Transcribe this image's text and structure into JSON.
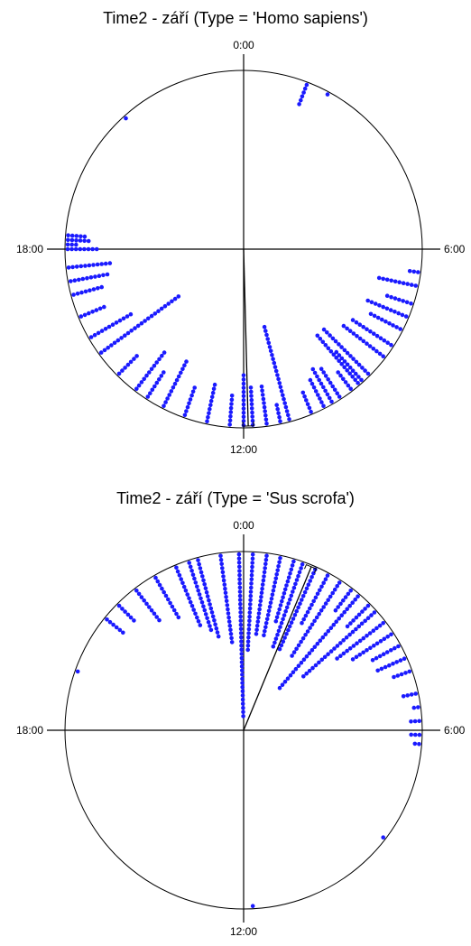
{
  "chart_data": [
    {
      "type": "scatter",
      "title": "Time2 - září (Type = 'Homo sapiens')",
      "axis": {
        "type": "circular",
        "labels": [
          "0:00",
          "6:00",
          "12:00",
          "18:00"
        ]
      },
      "point_color": "#1a1aff",
      "mean_direction_hours": 11.9,
      "series": [
        {
          "times": [
            18.0,
            18.0,
            18.0,
            18.0,
            18.0,
            18.0,
            18.0,
            18.0,
            18.1,
            18.1,
            18.1,
            18.2,
            18.2,
            18.2,
            18.2,
            18.2,
            18.2,
            18.3,
            18.3,
            18.3,
            18.3,
            18.3,
            17.6,
            17.6,
            17.6,
            17.6,
            17.6,
            17.6,
            17.6,
            17.6,
            17.6,
            17.6,
            17.6,
            17.3,
            17.3,
            17.3,
            17.3,
            17.3,
            17.3,
            17.3,
            17.3,
            17.3,
            17.3,
            17.0,
            17.0,
            17.0,
            17.0,
            17.0,
            17.0,
            17.0,
            17.0,
            16.5,
            16.5,
            16.5,
            16.5,
            16.5,
            16.5,
            16.5,
            16.0,
            16.0,
            16.0,
            16.0,
            16.0,
            16.0,
            16.0,
            16.0,
            16.0,
            16.0,
            16.0,
            16.0,
            15.6,
            15.6,
            15.6,
            15.6,
            15.6,
            15.6,
            15.6,
            15.6,
            15.6,
            15.6,
            15.6,
            15.6,
            15.6,
            15.6,
            15.6,
            15.6,
            15.6,
            15.6,
            15.6,
            15.6,
            15.6,
            15.6,
            15.6,
            15.6,
            15.0,
            15.0,
            15.0,
            15.0,
            15.0,
            15.0,
            15.0,
            14.5,
            14.5,
            14.5,
            14.5,
            14.5,
            14.5,
            14.5,
            14.5,
            14.5,
            14.5,
            14.5,
            14.5,
            14.2,
            14.2,
            14.2,
            14.2,
            14.2,
            14.2,
            14.2,
            14.2,
            13.8,
            13.8,
            13.8,
            13.8,
            13.8,
            13.8,
            13.8,
            13.8,
            13.8,
            13.8,
            13.8,
            13.8,
            13.8,
            13.3,
            13.3,
            13.3,
            13.3,
            13.3,
            13.3,
            13.3,
            13.3,
            12.8,
            12.8,
            12.8,
            12.8,
            12.8,
            12.8,
            12.8,
            12.8,
            12.8,
            12.8,
            12.3,
            12.3,
            12.3,
            12.3,
            12.3,
            12.3,
            12.3,
            12.3,
            12.0,
            12.0,
            12.0,
            12.0,
            12.0,
            12.0,
            12.0,
            12.0,
            12.0,
            12.0,
            12.0,
            12.0,
            12.0,
            11.8,
            11.8,
            11.8,
            11.8,
            11.8,
            11.8,
            11.8,
            11.8,
            11.8,
            11.8,
            11.5,
            11.5,
            11.5,
            11.5,
            11.5,
            11.5,
            11.5,
            11.5,
            11.5,
            11.5,
            11.2,
            11.2,
            11.2,
            11.2,
            11.2,
            11.0,
            11.0,
            11.0,
            11.0,
            11.0,
            11.0,
            11.0,
            11.0,
            11.0,
            11.0,
            11.0,
            11.0,
            11.0,
            11.0,
            11.0,
            11.0,
            11.0,
            11.0,
            11.0,
            11.0,
            11.0,
            11.0,
            11.0,
            11.0,
            10.5,
            10.5,
            10.5,
            10.5,
            10.5,
            10.5,
            10.2,
            10.2,
            10.2,
            10.2,
            10.2,
            10.2,
            10.2,
            10.2,
            10.0,
            10.0,
            10.0,
            10.0,
            10.0,
            10.0,
            10.0,
            10.0,
            10.0,
            10.0,
            9.8,
            9.8,
            9.8,
            9.8,
            9.8,
            9.8,
            9.8,
            9.8,
            9.8,
            9.5,
            9.5,
            9.5,
            9.5,
            9.5,
            9.5,
            9.3,
            9.3,
            9.3,
            9.3,
            9.3,
            9.3,
            9.3,
            9.3,
            9.3,
            9.3,
            9.3,
            9.3,
            9.3,
            9.3,
            9.3,
            9.3,
            9.2,
            9.2,
            9.2,
            9.2,
            9.2,
            9.2,
            9.2,
            9.2,
            9.2,
            9.2,
            9.0,
            9.0,
            9.0,
            9.0,
            9.0,
            9.0,
            9.0,
            9.0,
            9.0,
            9.0,
            9.0,
            9.0,
            9.0,
            9.0,
            9.0,
            9.0,
            8.5,
            8.5,
            8.5,
            8.5,
            8.5,
            8.5,
            8.5,
            8.5,
            8.5,
            8.5,
            8.5,
            8.5,
            8.5,
            8.2,
            8.2,
            8.2,
            8.2,
            8.2,
            8.2,
            8.2,
            8.2,
            8.2,
            8.2,
            8.2,
            8.2,
            7.8,
            7.8,
            7.8,
            7.8,
            7.8,
            7.8,
            7.8,
            7.8,
            7.8,
            7.5,
            7.5,
            7.5,
            7.5,
            7.5,
            7.5,
            7.5,
            7.5,
            7.5,
            7.5,
            7.5,
            7.2,
            7.2,
            7.2,
            7.2,
            7.2,
            7.2,
            7.2,
            6.8,
            6.8,
            6.8,
            6.8,
            6.8,
            6.8,
            6.8,
            6.8,
            6.8,
            6.8,
            6.5,
            6.5,
            6.5,
            1.4,
            1.4,
            1.4,
            1.4,
            1.4,
            1.4,
            1.9,
            21.2
          ]
        }
      ]
    },
    {
      "type": "scatter",
      "title": "Time2 - září (Type = 'Sus scrofa')",
      "axis": {
        "type": "circular",
        "labels": [
          "0:00",
          "6:00",
          "12:00",
          "18:00"
        ]
      },
      "point_color": "#1a1aff",
      "mean_direction_hours": 1.5,
      "series": [
        {
          "times": [
            23.9,
            23.9,
            23.9,
            23.9,
            23.9,
            23.9,
            23.9,
            23.9,
            23.9,
            23.9,
            23.9,
            23.9,
            23.9,
            23.9,
            23.9,
            23.9,
            23.9,
            23.9,
            23.9,
            23.9,
            23.9,
            23.9,
            23.9,
            23.9,
            23.9,
            23.9,
            23.9,
            23.9,
            23.9,
            23.9,
            23.9,
            23.9,
            23.9,
            23.9,
            23.9,
            23.9,
            23.9,
            23.9,
            23.9,
            23.9,
            23.5,
            23.5,
            23.5,
            23.5,
            23.5,
            23.5,
            23.5,
            23.5,
            23.5,
            23.5,
            23.5,
            23.5,
            23.5,
            23.5,
            23.5,
            23.5,
            23.5,
            23.5,
            23.5,
            23.5,
            23.5,
            23.5,
            23.0,
            23.0,
            23.0,
            23.0,
            23.0,
            23.0,
            23.0,
            23.0,
            23.0,
            23.0,
            23.0,
            23.0,
            23.0,
            23.0,
            23.0,
            23.0,
            23.0,
            23.0,
            23.0,
            23.0,
            22.8,
            22.8,
            22.8,
            22.8,
            22.8,
            22.8,
            22.8,
            22.8,
            22.8,
            22.8,
            22.8,
            22.8,
            22.8,
            22.8,
            22.8,
            22.8,
            22.8,
            22.8,
            22.5,
            22.5,
            22.5,
            22.5,
            22.5,
            22.5,
            22.5,
            22.5,
            22.5,
            22.5,
            22.5,
            22.5,
            22.5,
            22.5,
            22.5,
            22.5,
            22.0,
            22.0,
            22.0,
            22.0,
            22.0,
            22.0,
            22.0,
            22.0,
            22.0,
            22.0,
            22.0,
            22.0,
            21.5,
            21.5,
            21.5,
            21.5,
            21.5,
            21.5,
            21.5,
            21.5,
            21.5,
            21.5,
            21.0,
            21.0,
            21.0,
            21.0,
            21.0,
            21.0,
            20.6,
            20.6,
            20.6,
            20.6,
            20.6,
            20.6,
            19.3,
            0.2,
            0.2,
            0.2,
            0.2,
            0.2,
            0.2,
            0.2,
            0.2,
            0.2,
            0.2,
            0.2,
            0.2,
            0.2,
            0.2,
            0.2,
            0.2,
            0.2,
            0.2,
            0.2,
            0.2,
            0.2,
            0.2,
            0.2,
            0.2,
            0.5,
            0.5,
            0.5,
            0.5,
            0.5,
            0.5,
            0.5,
            0.5,
            0.5,
            0.5,
            0.5,
            0.5,
            0.5,
            0.5,
            0.5,
            0.5,
            0.5,
            0.5,
            0.5,
            0.5,
            0.8,
            0.8,
            0.8,
            0.8,
            0.8,
            0.8,
            0.8,
            0.8,
            0.8,
            0.8,
            0.8,
            0.8,
            0.8,
            0.8,
            0.8,
            0.8,
            0.8,
            0.8,
            0.8,
            0.8,
            1.1,
            1.1,
            1.1,
            1.1,
            1.1,
            1.1,
            1.1,
            1.1,
            1.1,
            1.1,
            1.1,
            1.1,
            1.1,
            1.1,
            1.1,
            1.1,
            1.3,
            1.3,
            1.3,
            1.3,
            1.3,
            1.3,
            1.3,
            1.3,
            1.3,
            1.3,
            1.3,
            1.3,
            1.3,
            1.3,
            1.3,
            1.3,
            1.3,
            1.3,
            1.3,
            1.3,
            1.3,
            1.3,
            1.6,
            1.6,
            1.6,
            1.6,
            1.6,
            1.6,
            1.6,
            1.6,
            1.6,
            1.6,
            1.6,
            1.6,
            1.6,
            1.6,
            1.6,
            1.6,
            1.6,
            1.6,
            1.6,
            1.6,
            1.6,
            1.6,
            1.9,
            1.9,
            1.9,
            1.9,
            1.9,
            1.9,
            1.9,
            1.9,
            1.9,
            1.9,
            1.9,
            1.9,
            1.9,
            1.9,
            2.2,
            2.2,
            2.2,
            2.2,
            2.2,
            2.2,
            2.2,
            2.2,
            2.2,
            2.2,
            2.2,
            2.2,
            2.2,
            2.2,
            2.2,
            2.2,
            2.2,
            2.2,
            2.2,
            2.2,
            2.2,
            2.2,
            2.5,
            2.5,
            2.5,
            2.5,
            2.5,
            2.5,
            2.5,
            2.7,
            2.7,
            2.7,
            2.7,
            2.7,
            2.7,
            2.7,
            2.7,
            2.7,
            2.7,
            2.7,
            2.7,
            2.7,
            2.7,
            2.7,
            2.7,
            2.7,
            2.7,
            2.7,
            2.7,
            2.7,
            2.7,
            2.7,
            2.7,
            2.7,
            2.7,
            2.7,
            2.7,
            2.7,
            2.7,
            3.0,
            3.0,
            3.0,
            3.0,
            3.0,
            3.0,
            3.0,
            3.0,
            3.2,
            3.2,
            3.2,
            3.2,
            3.2,
            3.2,
            3.2,
            3.2,
            3.2,
            3.2,
            3.2,
            3.2,
            3.2,
            3.2,
            3.2,
            3.2,
            3.2,
            3.2,
            3.2,
            3.2,
            3.2,
            3.2,
            3.2,
            3.2,
            3.5,
            3.5,
            3.5,
            3.5,
            3.5,
            3.5,
            3.5,
            3.5,
            3.5,
            3.5,
            3.5,
            3.5,
            3.5,
            3.5,
            3.5,
            3.8,
            3.8,
            3.8,
            3.8,
            3.8,
            3.8,
            3.8,
            3.8,
            3.8,
            3.8,
            3.8,
            3.8,
            4.1,
            4.1,
            4.1,
            4.1,
            4.1,
            4.1,
            4.1,
            4.1,
            4.4,
            4.4,
            4.4,
            4.4,
            4.4,
            4.4,
            4.4,
            4.4,
            4.7,
            4.7,
            4.7,
            4.7,
            4.7,
            5.2,
            5.2,
            5.2,
            5.2,
            5.5,
            5.5,
            5.8,
            5.8,
            5.8,
            6.1,
            6.1,
            6.1,
            6.3,
            6.3,
            8.5,
            11.8
          ]
        }
      ]
    }
  ]
}
